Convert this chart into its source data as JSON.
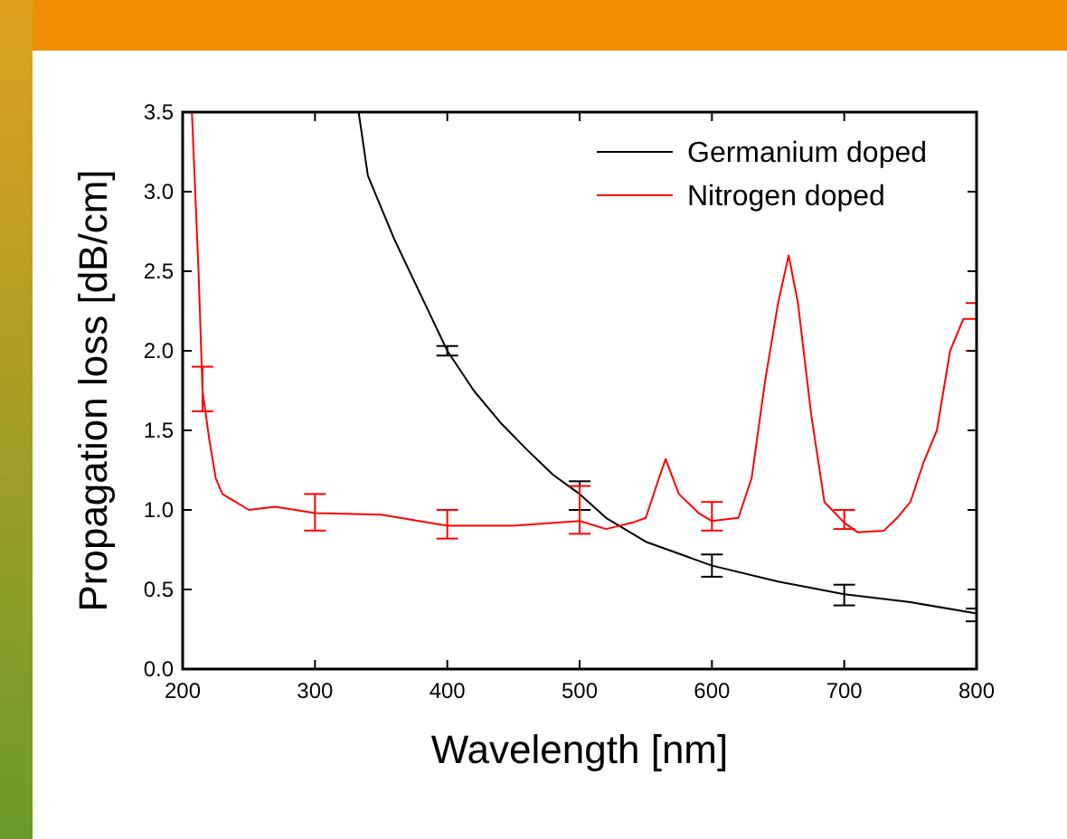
{
  "chart_data": {
    "type": "line",
    "xlabel": "Wavelength [nm]",
    "ylabel": "Propagation loss [dB/cm]",
    "xlim": [
      200,
      800
    ],
    "xticks": [
      200,
      300,
      400,
      500,
      600,
      700,
      800
    ],
    "ylim": [
      0,
      3.5
    ],
    "yticks": [
      {
        "value": 0,
        "label": "0.0"
      },
      {
        "value": 0.5,
        "label": "0.5"
      },
      {
        "value": 1,
        "label": "1.0"
      },
      {
        "value": 1.5,
        "label": "1.5"
      },
      {
        "value": 2,
        "label": "2.0"
      },
      {
        "value": 2.5,
        "label": "2.5"
      },
      {
        "value": 3,
        "label": "3.0"
      },
      {
        "value": 3.5,
        "label": "3.5"
      }
    ],
    "legend": "top right",
    "grid": false,
    "series": [
      {
        "name": "Germanium doped",
        "color": "#000000",
        "x": [
          333,
          340,
          350,
          360,
          380,
          400,
          420,
          440,
          460,
          480,
          500,
          520,
          550,
          600,
          650,
          700,
          750,
          800
        ],
        "values": [
          3.5,
          3.1,
          2.9,
          2.7,
          2.35,
          2.0,
          1.75,
          1.55,
          1.38,
          1.22,
          1.1,
          0.95,
          0.8,
          0.65,
          0.55,
          0.47,
          0.42,
          0.35
        ],
        "errors": [
          null,
          null,
          null,
          null,
          null,
          [
            1.97,
            2.03
          ],
          null,
          null,
          null,
          null,
          [
            1.0,
            1.18
          ],
          null,
          null,
          [
            0.58,
            0.72
          ],
          null,
          [
            0.4,
            0.53
          ],
          null,
          [
            0.3,
            0.38
          ]
        ]
      },
      {
        "name": "Nitrogen doped",
        "color": "#ff0000",
        "x": [
          207,
          212,
          215,
          220,
          225,
          230,
          240,
          250,
          270,
          300,
          350,
          400,
          450,
          500,
          520,
          540,
          550,
          560,
          565,
          575,
          590,
          600,
          620,
          630,
          640,
          650,
          658,
          665,
          675,
          685,
          700,
          710,
          730,
          740,
          750,
          760,
          770,
          780,
          790,
          800
        ],
        "values": [
          3.5,
          2.5,
          1.75,
          1.45,
          1.2,
          1.1,
          1.05,
          1.0,
          1.02,
          0.98,
          0.97,
          0.9,
          0.9,
          0.93,
          0.88,
          0.92,
          0.95,
          1.2,
          1.32,
          1.1,
          0.98,
          0.93,
          0.95,
          1.2,
          1.8,
          2.3,
          2.6,
          2.3,
          1.6,
          1.05,
          0.92,
          0.86,
          0.87,
          0.95,
          1.05,
          1.3,
          1.5,
          2.0,
          2.2,
          2.2
        ],
        "errors": [
          null,
          null,
          [
            1.62,
            1.9
          ],
          null,
          null,
          null,
          null,
          null,
          null,
          [
            0.87,
            1.1
          ],
          null,
          [
            0.82,
            1.0
          ],
          null,
          [
            0.85,
            1.15
          ],
          null,
          null,
          null,
          null,
          null,
          null,
          null,
          [
            0.87,
            1.05
          ],
          null,
          null,
          null,
          null,
          null,
          null,
          null,
          null,
          [
            0.88,
            1.0
          ],
          null,
          null,
          null,
          null,
          null,
          null,
          null,
          null,
          [
            2.0,
            2.3
          ]
        ]
      }
    ]
  }
}
